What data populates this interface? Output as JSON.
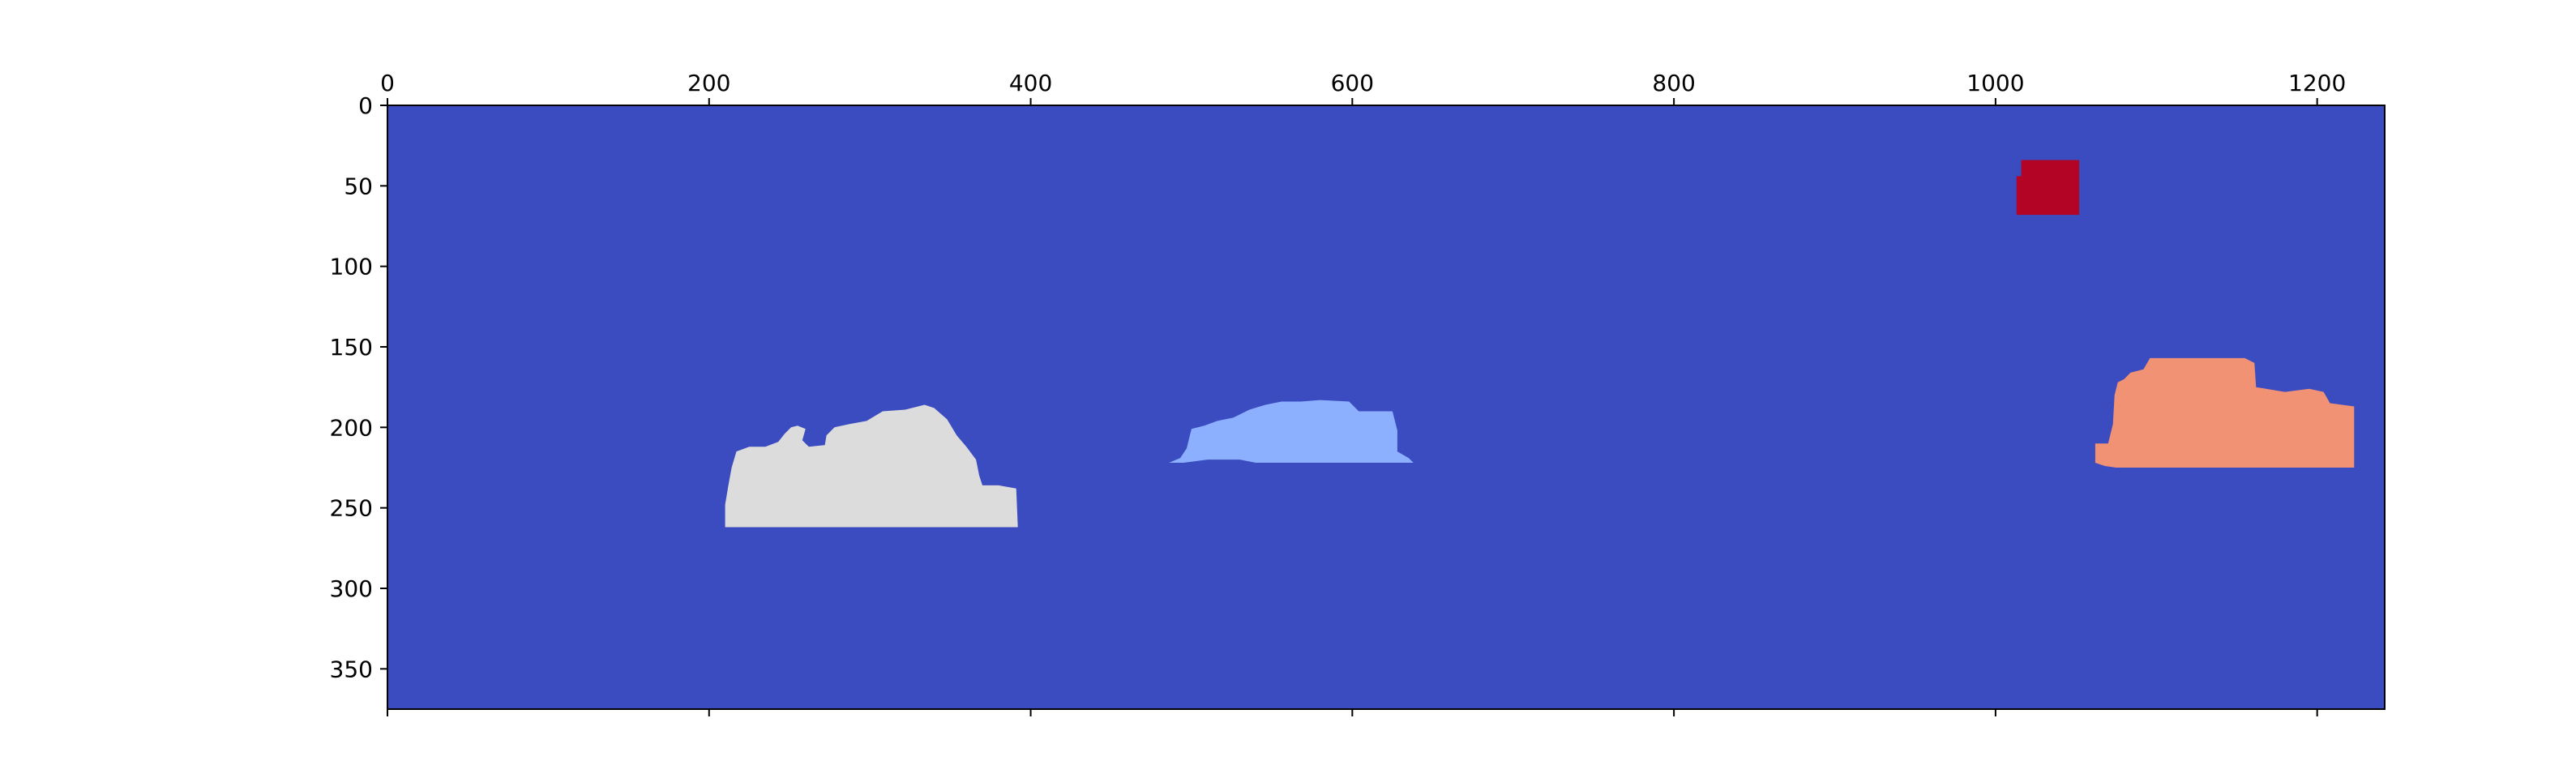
{
  "chart_data": {
    "type": "heatmap",
    "title": "",
    "xlabel": "",
    "ylabel": "",
    "colormap": "coolwarm",
    "xlim": [
      0,
      1242
    ],
    "ylim": [
      375,
      0
    ],
    "grid": false,
    "background": {
      "label": "background",
      "color": "#3b4cc0"
    },
    "x_ticks": [
      0,
      200,
      400,
      600,
      800,
      1000,
      1200
    ],
    "y_ticks": [
      0,
      50,
      100,
      150,
      200,
      250,
      300,
      350
    ],
    "x_tick_labels": [
      "0",
      "200",
      "400",
      "600",
      "800",
      "1000",
      "1200"
    ],
    "y_tick_labels": [
      "0",
      "50",
      "100",
      "150",
      "200",
      "250",
      "300",
      "350"
    ],
    "regions": [
      {
        "id": "region-1",
        "color": "#b40426",
        "points": [
          [
            1016,
            34
          ],
          [
            1052,
            34
          ],
          [
            1052,
            68
          ],
          [
            1013,
            68
          ],
          [
            1013,
            44
          ],
          [
            1016,
            44
          ]
        ]
      },
      {
        "id": "region-2",
        "color": "#dddcdc",
        "points": [
          [
            210,
            262
          ],
          [
            210,
            248
          ],
          [
            212,
            236
          ],
          [
            214,
            225
          ],
          [
            217,
            215
          ],
          [
            225,
            212
          ],
          [
            235,
            212
          ],
          [
            243,
            209
          ],
          [
            247,
            204
          ],
          [
            251,
            200
          ],
          [
            255,
            199
          ],
          [
            260,
            201
          ],
          [
            258,
            208
          ],
          [
            262,
            212
          ],
          [
            272,
            211
          ],
          [
            273,
            205
          ],
          [
            278,
            200
          ],
          [
            287,
            198
          ],
          [
            298,
            196
          ],
          [
            308,
            190
          ],
          [
            322,
            189
          ],
          [
            334,
            186
          ],
          [
            340,
            188
          ],
          [
            348,
            195
          ],
          [
            354,
            205
          ],
          [
            360,
            212
          ],
          [
            366,
            220
          ],
          [
            368,
            230
          ],
          [
            370,
            236
          ],
          [
            380,
            236
          ],
          [
            391,
            238
          ],
          [
            392,
            262
          ]
        ]
      },
      {
        "id": "region-3",
        "color": "#8db0fe",
        "points": [
          [
            486,
            222
          ],
          [
            493,
            219
          ],
          [
            497,
            213
          ],
          [
            500,
            201
          ],
          [
            508,
            199
          ],
          [
            516,
            196
          ],
          [
            526,
            194
          ],
          [
            536,
            189
          ],
          [
            546,
            186
          ],
          [
            556,
            184
          ],
          [
            568,
            184
          ],
          [
            580,
            183
          ],
          [
            598,
            184
          ],
          [
            604,
            190
          ],
          [
            625,
            190
          ],
          [
            628,
            202
          ],
          [
            628,
            215
          ],
          [
            635,
            219
          ],
          [
            638,
            222
          ],
          [
            610,
            222
          ],
          [
            560,
            222
          ],
          [
            540,
            222
          ],
          [
            530,
            220
          ],
          [
            510,
            220
          ],
          [
            495,
            222
          ]
        ]
      },
      {
        "id": "region-4",
        "color": "#f29274",
        "points": [
          [
            1062,
            222
          ],
          [
            1062,
            210
          ],
          [
            1070,
            210
          ],
          [
            1073,
            198
          ],
          [
            1074,
            180
          ],
          [
            1076,
            172
          ],
          [
            1080,
            170
          ],
          [
            1084,
            166
          ],
          [
            1092,
            164
          ],
          [
            1096,
            157
          ],
          [
            1155,
            157
          ],
          [
            1161,
            160
          ],
          [
            1162,
            175
          ],
          [
            1180,
            178
          ],
          [
            1195,
            176
          ],
          [
            1204,
            178
          ],
          [
            1208,
            185
          ],
          [
            1223,
            187
          ],
          [
            1223,
            225
          ],
          [
            1100,
            225
          ],
          [
            1090,
            225
          ],
          [
            1075,
            225
          ],
          [
            1068,
            224
          ]
        ]
      }
    ]
  }
}
